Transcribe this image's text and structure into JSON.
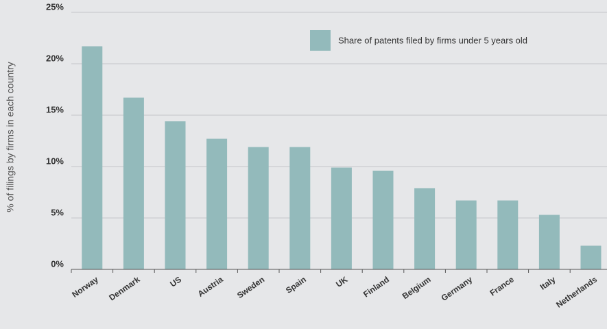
{
  "chart_data": {
    "type": "bar",
    "y_label": "% of filings by firms in each country",
    "categories": [
      "Norway",
      "Denmark",
      "US",
      "Austria",
      "Sweden",
      "Spain",
      "UK",
      "Finland",
      "Belgium",
      "Germany",
      "France",
      "Italy",
      "Netherlands"
    ],
    "series": [
      {
        "name": "Share of patents filed by firms under 5 years old",
        "color": "#93babb",
        "values": [
          21.7,
          16.7,
          14.4,
          12.7,
          11.9,
          11.9,
          9.9,
          9.6,
          7.9,
          6.7,
          6.7,
          5.3,
          2.3
        ]
      }
    ],
    "ylim": [
      0,
      25
    ],
    "yticks": [
      {
        "value": 0,
        "label": "0%"
      },
      {
        "value": 5,
        "label": "5%"
      },
      {
        "value": 10,
        "label": "10%"
      },
      {
        "value": 15,
        "label": "15%"
      },
      {
        "value": 20,
        "label": "20%"
      },
      {
        "value": 25,
        "label": "25%"
      }
    ],
    "grid": true,
    "legend": "top-right"
  }
}
